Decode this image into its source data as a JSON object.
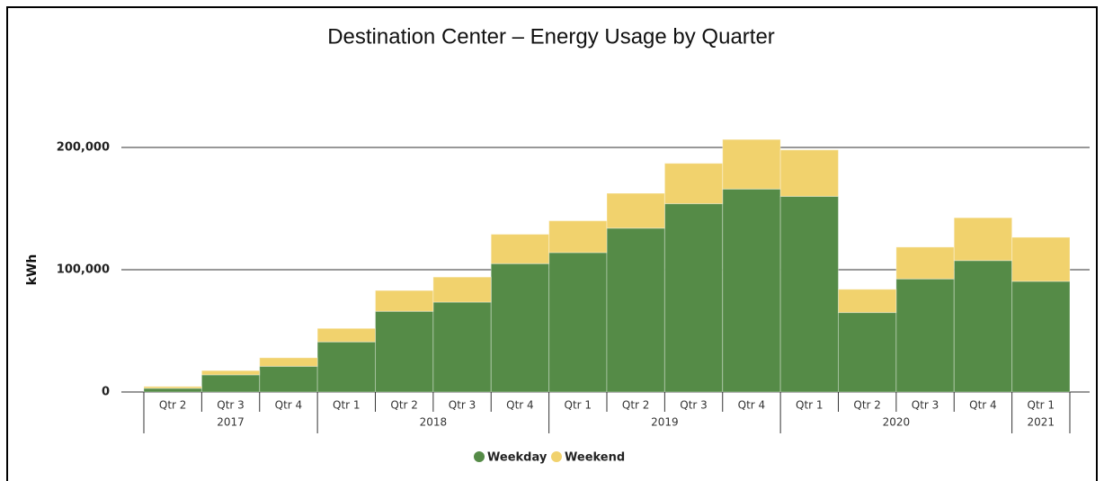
{
  "chart_data": {
    "type": "stacked_bar",
    "title": "Destination Center – Energy Usage by Quarter",
    "y_label": "kWh",
    "groups": [
      {
        "name": "2017",
        "categories": [
          "Qtr 2",
          "Qtr 3",
          "Qtr 4"
        ]
      },
      {
        "name": "2018",
        "categories": [
          "Qtr 1",
          "Qtr 2",
          "Qtr 3",
          "Qtr 4"
        ]
      },
      {
        "name": "2019",
        "categories": [
          "Qtr 1",
          "Qtr 2",
          "Qtr 3",
          "Qtr 4"
        ]
      },
      {
        "name": "2020",
        "categories": [
          "Qtr 1",
          "Qtr 2",
          "Qtr 3",
          "Qtr 4"
        ]
      },
      {
        "name": "2021",
        "categories": [
          "Qtr 1"
        ]
      }
    ],
    "series": [
      {
        "name": "Weekday",
        "color": "#558b47",
        "values": [
          3000,
          14000,
          21000,
          41000,
          66000,
          73500,
          105000,
          114000,
          134000,
          154000,
          166000,
          160000,
          65000,
          92500,
          107500,
          90500
        ]
      },
      {
        "name": "Weekend",
        "color": "#f1d26d",
        "values": [
          1500,
          3500,
          7000,
          11000,
          17000,
          20500,
          24000,
          26000,
          28500,
          33000,
          40500,
          38000,
          19000,
          26000,
          35000,
          36000
        ]
      }
    ],
    "ylim": [
      0,
      240000
    ],
    "yticks": [
      0,
      {
        "value": 100000,
        "label": "100,000"
      },
      {
        "value": 200000,
        "label": "200,000"
      }
    ],
    "grid": true,
    "legend": "bottom"
  }
}
